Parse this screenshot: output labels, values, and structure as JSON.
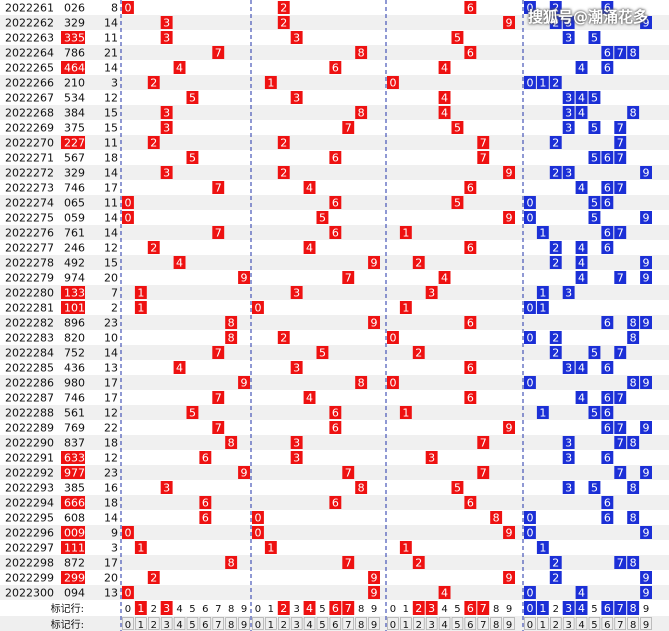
{
  "watermark": "搜狐号@潮涌花多",
  "footer": {
    "label": "标记行:",
    "digits": [
      "0",
      "1",
      "2",
      "3",
      "4",
      "5",
      "6",
      "7",
      "8",
      "9"
    ],
    "row1_marked": {
      "hundreds": [
        1,
        3
      ],
      "tens": [
        2,
        4,
        6,
        7
      ],
      "units": [
        2,
        3,
        6,
        7
      ],
      "span": [
        0,
        1,
        3,
        4,
        6,
        7,
        8
      ]
    }
  },
  "colors": {
    "red": "#ee1111",
    "blue": "#1b2fd6",
    "stripe": "#f0f0f0",
    "divider": "#2233aa"
  },
  "chart_data": {
    "type": "table",
    "columns": [
      "period",
      "number",
      "sum",
      "hundreds",
      "tens",
      "units",
      "span"
    ],
    "rows": [
      {
        "period": "2022261",
        "number": "026",
        "sum": 8,
        "red": false
      },
      {
        "period": "2022262",
        "number": "329",
        "sum": 14,
        "red": false
      },
      {
        "period": "2022263",
        "number": "335",
        "sum": 11,
        "red": true
      },
      {
        "period": "2022264",
        "number": "786",
        "sum": 21,
        "red": false
      },
      {
        "period": "2022265",
        "number": "464",
        "sum": 14,
        "red": true
      },
      {
        "period": "2022266",
        "number": "210",
        "sum": 3,
        "red": false
      },
      {
        "period": "2022267",
        "number": "534",
        "sum": 12,
        "red": false
      },
      {
        "period": "2022268",
        "number": "384",
        "sum": 15,
        "red": false
      },
      {
        "period": "2022269",
        "number": "375",
        "sum": 15,
        "red": false
      },
      {
        "period": "2022270",
        "number": "227",
        "sum": 11,
        "red": true
      },
      {
        "period": "2022271",
        "number": "567",
        "sum": 18,
        "red": false
      },
      {
        "period": "2022272",
        "number": "329",
        "sum": 14,
        "red": false
      },
      {
        "period": "2022273",
        "number": "746",
        "sum": 17,
        "red": false
      },
      {
        "period": "2022274",
        "number": "065",
        "sum": 11,
        "red": false
      },
      {
        "period": "2022275",
        "number": "059",
        "sum": 14,
        "red": false
      },
      {
        "period": "2022276",
        "number": "761",
        "sum": 14,
        "red": false
      },
      {
        "period": "2022277",
        "number": "246",
        "sum": 12,
        "red": false
      },
      {
        "period": "2022278",
        "number": "492",
        "sum": 15,
        "red": false
      },
      {
        "period": "2022279",
        "number": "974",
        "sum": 20,
        "red": false
      },
      {
        "period": "2022280",
        "number": "133",
        "sum": 7,
        "red": true
      },
      {
        "period": "2022281",
        "number": "101",
        "sum": 2,
        "red": true
      },
      {
        "period": "2022282",
        "number": "896",
        "sum": 23,
        "red": false
      },
      {
        "period": "2022283",
        "number": "820",
        "sum": 10,
        "red": false
      },
      {
        "period": "2022284",
        "number": "752",
        "sum": 14,
        "red": false
      },
      {
        "period": "2022285",
        "number": "436",
        "sum": 13,
        "red": false
      },
      {
        "period": "2022286",
        "number": "980",
        "sum": 17,
        "red": false
      },
      {
        "period": "2022287",
        "number": "746",
        "sum": 17,
        "red": false
      },
      {
        "period": "2022288",
        "number": "561",
        "sum": 12,
        "red": false
      },
      {
        "period": "2022289",
        "number": "769",
        "sum": 22,
        "red": false
      },
      {
        "period": "2022290",
        "number": "837",
        "sum": 18,
        "red": false
      },
      {
        "period": "2022291",
        "number": "633",
        "sum": 12,
        "red": true
      },
      {
        "period": "2022292",
        "number": "977",
        "sum": 23,
        "red": true
      },
      {
        "period": "2022293",
        "number": "385",
        "sum": 16,
        "red": false
      },
      {
        "period": "2022294",
        "number": "666",
        "sum": 18,
        "red": true
      },
      {
        "period": "2022295",
        "number": "608",
        "sum": 14,
        "red": false
      },
      {
        "period": "2022296",
        "number": "009",
        "sum": 9,
        "red": true
      },
      {
        "period": "2022297",
        "number": "111",
        "sum": 3,
        "red": true
      },
      {
        "period": "2022298",
        "number": "872",
        "sum": 17,
        "red": false
      },
      {
        "period": "2022299",
        "number": "299",
        "sum": 20,
        "red": true
      },
      {
        "period": "2022300",
        "number": "094",
        "sum": 13,
        "red": false
      }
    ]
  }
}
